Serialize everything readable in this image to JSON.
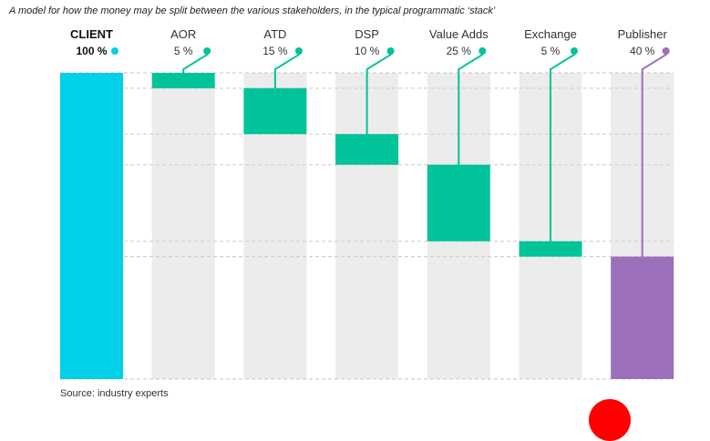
{
  "subtitle": "A model for how the money may be split between the various stakeholders, in the typical programmatic ‘stack’",
  "source": "Source: industry experts",
  "colors": {
    "client": "#00d0e8",
    "intermediary": "#00c39a",
    "publisher": "#9b6fba",
    "column_bg": "#ececec",
    "grid": "#d0d0d0",
    "logo": "#ff0000"
  },
  "chart_data": {
    "type": "bar",
    "subtype": "waterfall",
    "title": "",
    "xlabel": "",
    "ylabel": "",
    "ylim": [
      0,
      100
    ],
    "categories": [
      "CLIENT",
      "AOR",
      "ATD",
      "DSP",
      "Value Adds",
      "Exchange",
      "Publisher"
    ],
    "value_labels": [
      "100 %",
      "5 %",
      "15 %",
      "10 %",
      "25 %",
      "5 %",
      "40 %"
    ],
    "values": [
      100,
      5,
      15,
      10,
      25,
      5,
      40
    ],
    "segments": [
      {
        "category": "CLIENT",
        "start": 0,
        "end": 100,
        "color_key": "client"
      },
      {
        "category": "AOR",
        "start": 95,
        "end": 100,
        "color_key": "intermediary"
      },
      {
        "category": "ATD",
        "start": 80,
        "end": 95,
        "color_key": "intermediary"
      },
      {
        "category": "DSP",
        "start": 70,
        "end": 80,
        "color_key": "intermediary"
      },
      {
        "category": "Value Adds",
        "start": 45,
        "end": 70,
        "color_key": "intermediary"
      },
      {
        "category": "Exchange",
        "start": 40,
        "end": 45,
        "color_key": "intermediary"
      },
      {
        "category": "Publisher",
        "start": 0,
        "end": 40,
        "color_key": "publisher"
      }
    ],
    "grid": true,
    "legend": "none"
  }
}
